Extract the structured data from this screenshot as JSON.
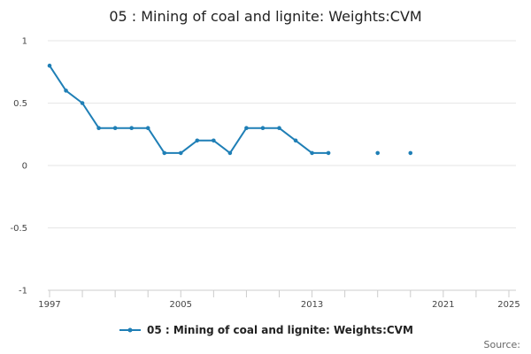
{
  "chart_data": {
    "type": "line",
    "title": "05 : Mining of coal and lignite: Weights:CVM",
    "xlabel": "",
    "ylabel": "",
    "xlim": [
      1997,
      2025
    ],
    "ylim": [
      -1,
      1
    ],
    "x_ticks": [
      "1997",
      "2005",
      "2013",
      "2021",
      "2025"
    ],
    "y_ticks": [
      "1",
      "0.5",
      "0",
      "-0.5",
      "-1"
    ],
    "grid": true,
    "legend_position": "bottom",
    "series": [
      {
        "name": "05 : Mining of coal and lignite: Weights:CVM",
        "color": "#1f7fb6",
        "points": [
          {
            "x": 1997,
            "y": 0.8
          },
          {
            "x": 1998,
            "y": 0.6
          },
          {
            "x": 1999,
            "y": 0.5
          },
          {
            "x": 2000,
            "y": 0.3
          },
          {
            "x": 2001,
            "y": 0.3
          },
          {
            "x": 2002,
            "y": 0.3
          },
          {
            "x": 2003,
            "y": 0.3
          },
          {
            "x": 2004,
            "y": 0.1
          },
          {
            "x": 2005,
            "y": 0.1
          },
          {
            "x": 2006,
            "y": 0.2
          },
          {
            "x": 2007,
            "y": 0.2
          },
          {
            "x": 2008,
            "y": 0.1
          },
          {
            "x": 2009,
            "y": 0.3
          },
          {
            "x": 2010,
            "y": 0.3
          },
          {
            "x": 2011,
            "y": 0.3
          },
          {
            "x": 2012,
            "y": 0.2
          },
          {
            "x": 2013,
            "y": 0.1
          },
          {
            "x": 2014,
            "y": 0.1
          },
          {
            "x": 2017,
            "y": 0.1
          },
          {
            "x": 2019,
            "y": 0.1
          }
        ]
      }
    ],
    "source_label": "Source:"
  }
}
